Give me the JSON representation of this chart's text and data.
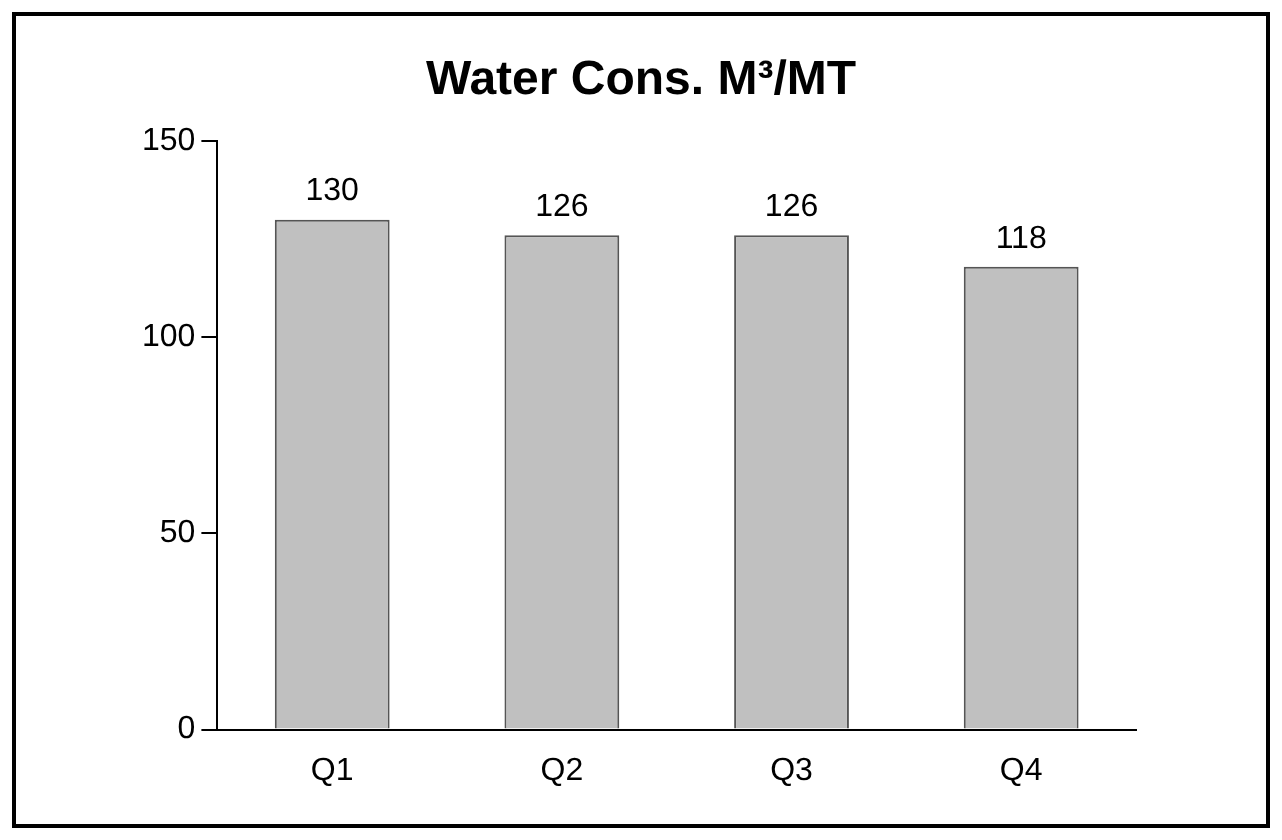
{
  "chart_data": {
    "type": "bar",
    "title": "Water Cons. M³/MT",
    "categories": [
      "Q1",
      "Q2",
      "Q3",
      "Q4"
    ],
    "values": [
      130,
      126,
      126,
      118
    ],
    "color": "#c0c0c0",
    "ylim": [
      0,
      150
    ],
    "yticks": [
      0,
      50,
      100,
      150
    ],
    "grid": false,
    "legend": false,
    "data_labels": true
  }
}
